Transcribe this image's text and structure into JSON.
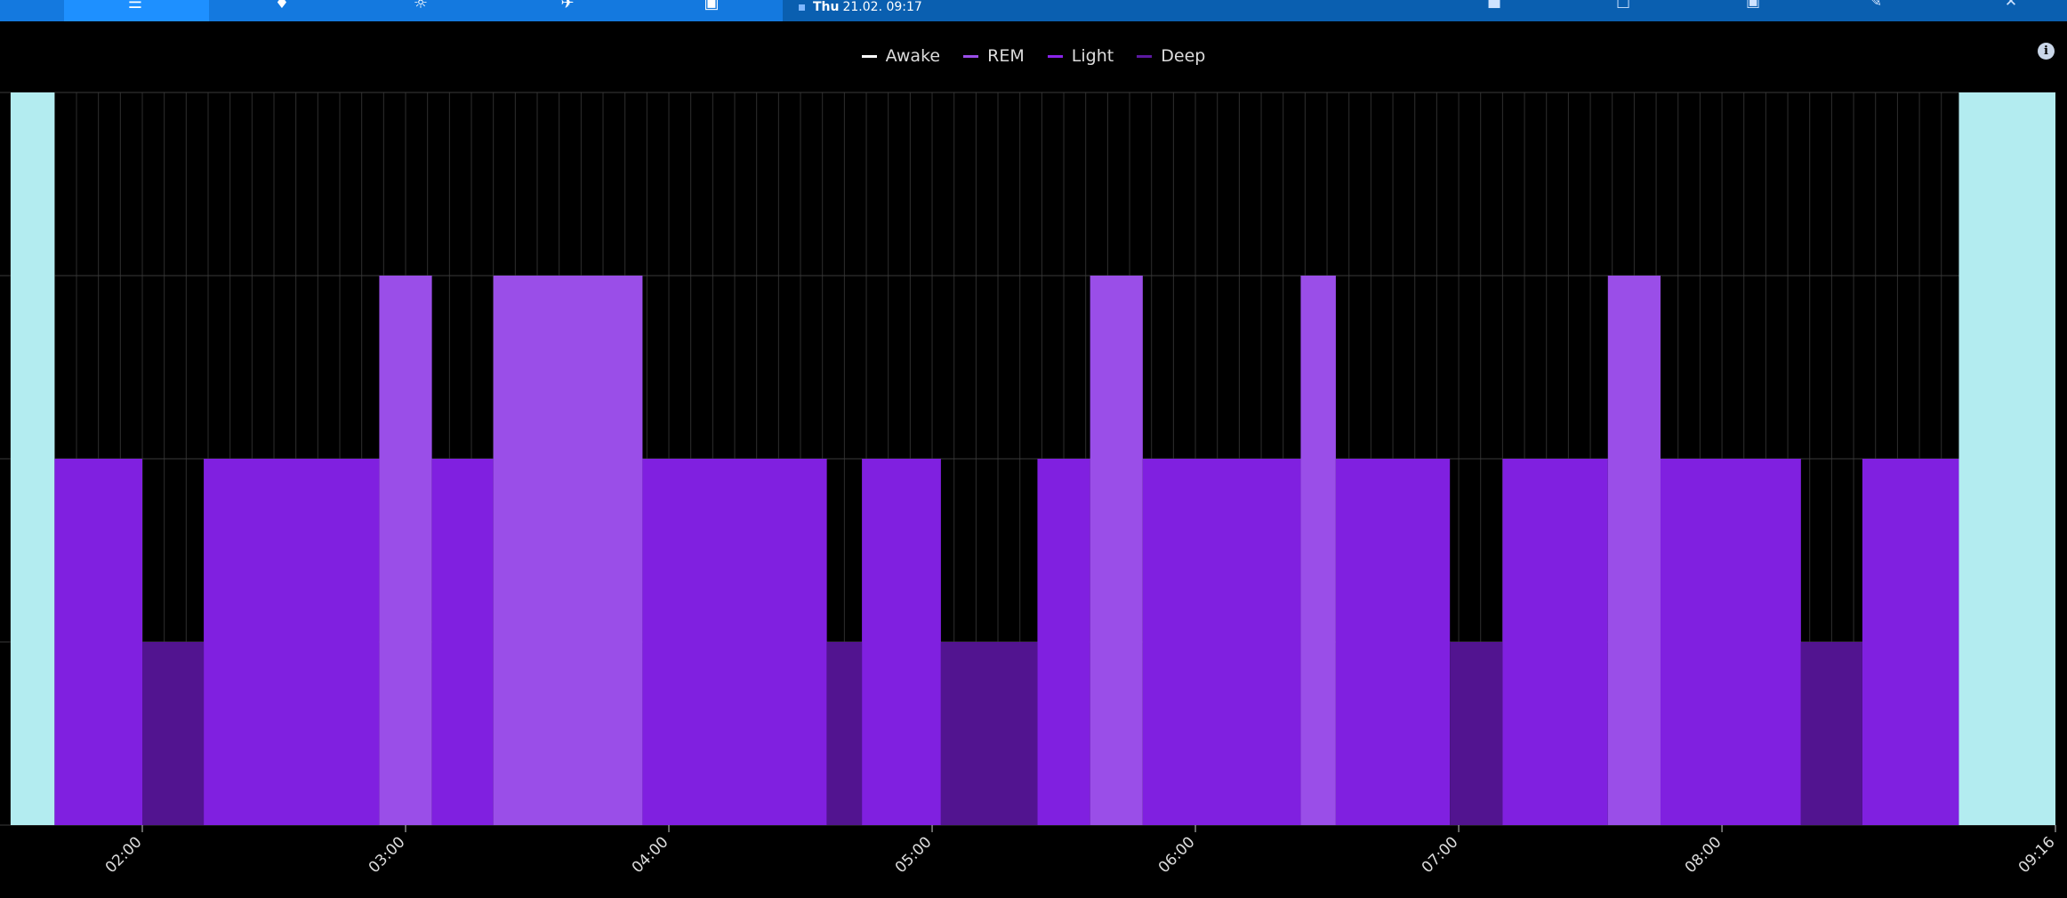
{
  "topbar": {
    "nav_icons": [
      "home-icon",
      "pin-icon",
      "weather-icon",
      "flight-icon",
      "device-icon"
    ],
    "date_day": "Thu",
    "date_value": "21.02. 09:17",
    "right_icons": [
      "car-icon",
      "save-icon",
      "export-icon",
      "edit-icon",
      "close-icon"
    ]
  },
  "info": {
    "icon": "info-icon",
    "glyph": "i"
  },
  "colors": {
    "Awake": "#b3ecf0",
    "REM": "#9a4ee8",
    "Light": "#8020e0",
    "Deep": "#521490",
    "grid": "#2e2e2e",
    "legend_Awake": "#ffffff",
    "legend_REM": "#9a4ee8",
    "legend_Light": "#8a24ea",
    "legend_Deep": "#5c19a0"
  },
  "chart_data": {
    "type": "area",
    "legend": [
      "Awake",
      "REM",
      "Light",
      "Deep"
    ],
    "levels": {
      "Awake": 4,
      "REM": 3,
      "Light": 2,
      "Deep": 1
    },
    "x_range": [
      "01:30",
      "09:16"
    ],
    "x_ticks": [
      "02:00",
      "03:00",
      "04:00",
      "05:00",
      "06:00",
      "07:00",
      "08:00",
      "09:16"
    ],
    "grid": true,
    "segments": [
      {
        "stage": "Awake",
        "start": "01:30",
        "end": "01:40"
      },
      {
        "stage": "Light",
        "start": "01:40",
        "end": "02:00"
      },
      {
        "stage": "Deep",
        "start": "02:00",
        "end": "02:14"
      },
      {
        "stage": "Light",
        "start": "02:14",
        "end": "02:54"
      },
      {
        "stage": "REM",
        "start": "02:54",
        "end": "03:06"
      },
      {
        "stage": "Light",
        "start": "03:06",
        "end": "03:20"
      },
      {
        "stage": "REM",
        "start": "03:20",
        "end": "03:54"
      },
      {
        "stage": "Light",
        "start": "03:54",
        "end": "04:36"
      },
      {
        "stage": "Deep",
        "start": "04:36",
        "end": "04:44"
      },
      {
        "stage": "Light",
        "start": "04:44",
        "end": "05:02"
      },
      {
        "stage": "Deep",
        "start": "05:02",
        "end": "05:24"
      },
      {
        "stage": "Light",
        "start": "05:24",
        "end": "05:36"
      },
      {
        "stage": "REM",
        "start": "05:36",
        "end": "05:48"
      },
      {
        "stage": "Light",
        "start": "05:48",
        "end": "06:24"
      },
      {
        "stage": "REM",
        "start": "06:24",
        "end": "06:32"
      },
      {
        "stage": "Light",
        "start": "06:32",
        "end": "06:58"
      },
      {
        "stage": "Deep",
        "start": "06:58",
        "end": "07:10"
      },
      {
        "stage": "Light",
        "start": "07:10",
        "end": "07:34"
      },
      {
        "stage": "REM",
        "start": "07:34",
        "end": "07:46"
      },
      {
        "stage": "Light",
        "start": "07:46",
        "end": "08:18"
      },
      {
        "stage": "Deep",
        "start": "08:18",
        "end": "08:32"
      },
      {
        "stage": "Light",
        "start": "08:32",
        "end": "08:54"
      },
      {
        "stage": "Awake",
        "start": "08:54",
        "end": "09:16"
      }
    ]
  }
}
